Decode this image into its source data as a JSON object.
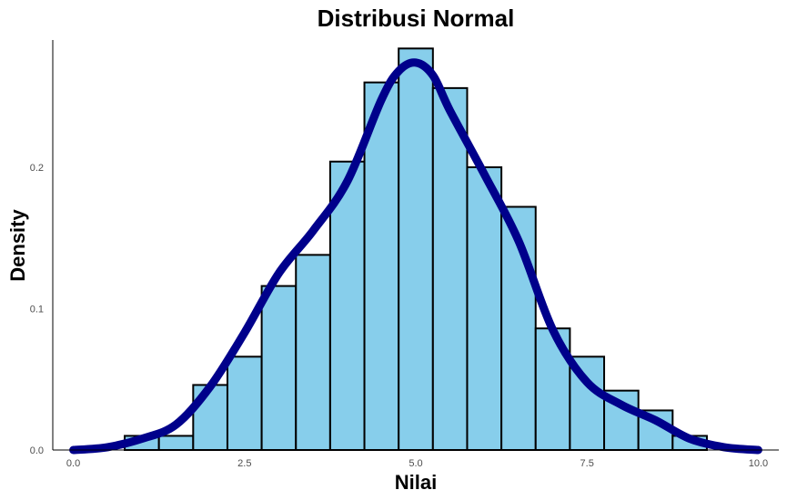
{
  "chart_data": {
    "type": "histogram",
    "title": "Distribusi Normal",
    "xlabel": "Nilai",
    "ylabel": "Density",
    "xlim": [
      -0.3,
      10.3
    ],
    "ylim": [
      0,
      0.29
    ],
    "x_ticks": [
      0.0,
      2.5,
      5.0,
      7.5,
      10.0
    ],
    "x_tick_labels": [
      "0.0",
      "2.5",
      "5.0",
      "7.5",
      "10.0"
    ],
    "y_ticks": [
      0.0,
      0.1,
      0.2
    ],
    "y_tick_labels": [
      "0.0",
      "0.1",
      "0.2"
    ],
    "grid": false,
    "bars": [
      {
        "x0": 0.75,
        "x1": 1.25,
        "density": 0.01
      },
      {
        "x0": 1.25,
        "x1": 1.75,
        "density": 0.01
      },
      {
        "x0": 1.75,
        "x1": 2.25,
        "density": 0.046
      },
      {
        "x0": 2.25,
        "x1": 2.75,
        "density": 0.066
      },
      {
        "x0": 2.75,
        "x1": 3.25,
        "density": 0.116
      },
      {
        "x0": 3.25,
        "x1": 3.75,
        "density": 0.138
      },
      {
        "x0": 3.75,
        "x1": 4.25,
        "density": 0.204
      },
      {
        "x0": 4.25,
        "x1": 4.75,
        "density": 0.26
      },
      {
        "x0": 4.75,
        "x1": 5.25,
        "density": 0.284
      },
      {
        "x0": 5.25,
        "x1": 5.75,
        "density": 0.256
      },
      {
        "x0": 5.75,
        "x1": 6.25,
        "density": 0.2
      },
      {
        "x0": 6.25,
        "x1": 6.75,
        "density": 0.172
      },
      {
        "x0": 6.75,
        "x1": 7.25,
        "density": 0.086
      },
      {
        "x0": 7.25,
        "x1": 7.75,
        "density": 0.066
      },
      {
        "x0": 7.75,
        "x1": 8.25,
        "density": 0.042
      },
      {
        "x0": 8.25,
        "x1": 8.75,
        "density": 0.028
      },
      {
        "x0": 8.75,
        "x1": 9.25,
        "density": 0.01
      }
    ],
    "density_curve": {
      "x": [
        0.0,
        0.5,
        1.0,
        1.5,
        2.0,
        2.5,
        3.0,
        3.5,
        4.0,
        4.5,
        4.75,
        5.0,
        5.25,
        5.5,
        6.0,
        6.5,
        7.0,
        7.5,
        8.0,
        8.5,
        9.0,
        9.5,
        10.0
      ],
      "y": [
        0.0,
        0.002,
        0.008,
        0.018,
        0.045,
        0.083,
        0.125,
        0.155,
        0.19,
        0.248,
        0.268,
        0.274,
        0.265,
        0.24,
        0.195,
        0.148,
        0.085,
        0.048,
        0.032,
        0.021,
        0.008,
        0.002,
        0.0
      ]
    },
    "colors": {
      "bar_fill": "#87CEEB",
      "bar_stroke": "#000000",
      "curve": "#00008B",
      "axis": "#000000",
      "tick_label": "#4d4d4d"
    }
  }
}
